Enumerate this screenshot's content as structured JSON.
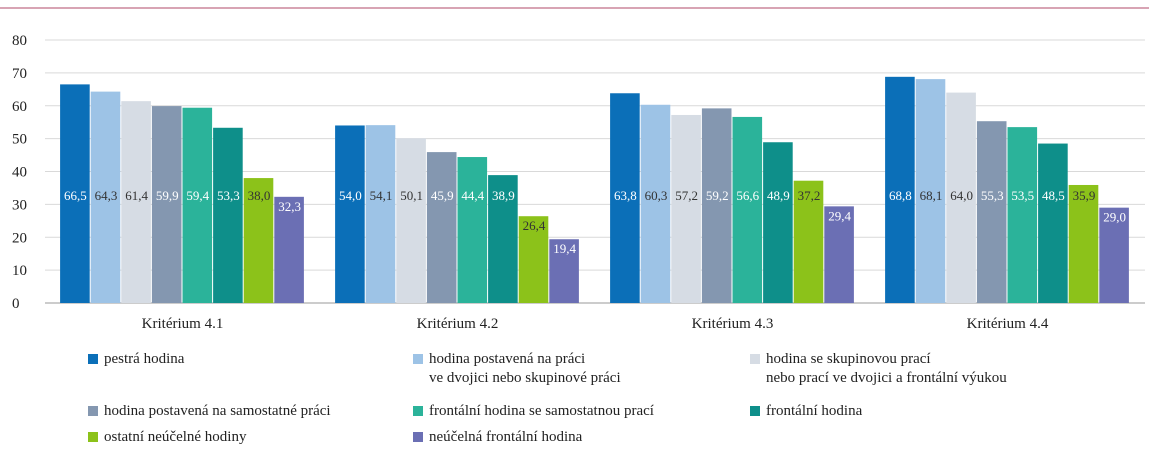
{
  "chart_data": {
    "type": "bar",
    "categories": [
      "Kritérium 4.1",
      "Kritérium 4.2",
      "Kritérium 4.3",
      "Kritérium 4.4"
    ],
    "series": [
      {
        "name": "pestrá hodina",
        "color": "#0b6fb8",
        "values": [
          66.5,
          54.0,
          63.8,
          68.8
        ],
        "value_labels": [
          "66,5",
          "54,0",
          "63,8",
          "68,8"
        ]
      },
      {
        "name": "hodina postavená na práci\nve dvojici nebo skupinové práci",
        "color": "#9dc3e6",
        "values": [
          64.3,
          54.1,
          60.3,
          68.1
        ],
        "value_labels": [
          "64,3",
          "54,1",
          "60,3",
          "68,1"
        ]
      },
      {
        "name": "hodina se skupinovou prací\nnebo prací ve dvojici a frontální výukou",
        "color": "#d6dce4",
        "values": [
          61.4,
          50.1,
          57.2,
          64.0
        ],
        "value_labels": [
          "61,4",
          "50,1",
          "57,2",
          "64,0"
        ]
      },
      {
        "name": "hodina postavená na samostatné práci",
        "color": "#8497b0",
        "values": [
          59.9,
          45.9,
          59.2,
          55.3
        ],
        "value_labels": [
          "59,9",
          "45,9",
          "59,2",
          "55,3"
        ]
      },
      {
        "name": "frontální hodina se samostatnou prací",
        "color": "#2bb39a",
        "values": [
          59.4,
          44.4,
          56.6,
          53.5
        ],
        "value_labels": [
          "59,4",
          "44,4",
          "56,6",
          "53,5"
        ]
      },
      {
        "name": "frontální hodina",
        "color": "#0e8f8a",
        "values": [
          53.3,
          38.9,
          48.9,
          48.5
        ],
        "value_labels": [
          "53,3",
          "38,9",
          "48,9",
          "48,5"
        ]
      },
      {
        "name": "ostatní neúčelné hodiny",
        "color": "#8cc21a",
        "values": [
          38.0,
          26.4,
          37.2,
          35.9
        ],
        "value_labels": [
          "38,0",
          "26,4",
          "37,2",
          "35,9"
        ]
      },
      {
        "name": "neúčelná frontální hodina",
        "color": "#6b6fb4",
        "values": [
          32.3,
          19.4,
          29.4,
          29.0
        ],
        "value_labels": [
          "32,3",
          "19,4",
          "29,4",
          "29,0"
        ]
      }
    ],
    "ylim": [
      0,
      80
    ],
    "yticks": [
      0,
      10,
      20,
      30,
      40,
      50,
      60,
      70,
      80
    ],
    "grid": true,
    "legend": "bottom"
  }
}
